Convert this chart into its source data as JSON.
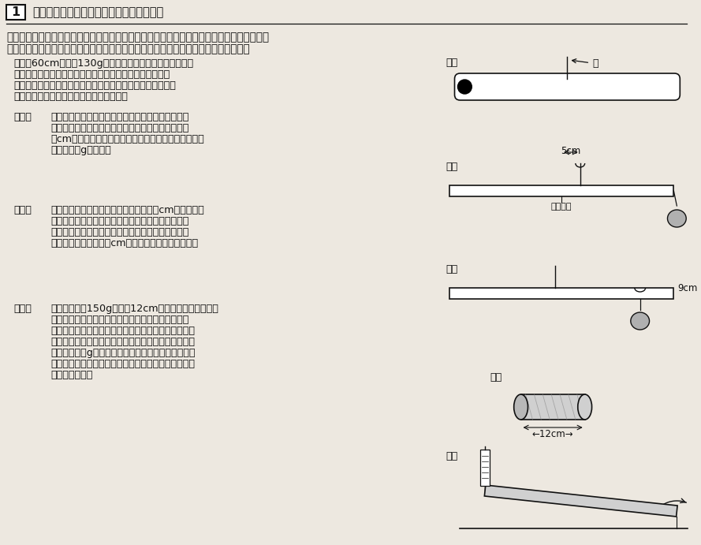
{
  "title_box": "1",
  "title_text": "次の文章を読み，下の問いに答えなさい。",
  "instruction1": "ただし，計算結果を答える際，割り算が必要な場合は，分数ではなく小数で答えなさい。ま",
  "instruction2": "た，割り切れない場合のみ，小数第２位を四捨五入して小数第１位まで答えなさい。",
  "intro_lines": [
    "　長さ60cm，重さ130gで太さがどこでも同じ筒状の棒が",
    "あります。この棒の中央の点に糸をむすびつけて上からつ",
    "るすと水平になりました（図１）。次の問いに答えなさい。",
    "なお，糸の重さは考えないものとします。"
  ],
  "q1_label": "（１）",
  "q1_lines": [
    "この棒の右端におもりをつけたところ，つりあいが",
    "とれなくなりました。そこで，糸を中央より右側に",
    "５cm動かすと棒が水平になりました（図２）。おもり",
    "の重さは何gですか。"
  ],
  "q2_label": "（２）",
  "q2_lines": [
    "（１）の水平の状態でおもりを左側に９cm動かしたと",
    "ころ，つりあいがとれなくなったので棒が水平にな",
    "るように糸の位置を動かしました。このとき，糸の",
    "位置は棒の左端から何cmのところですか（図３）。"
  ],
  "q3_label": "（３）",
  "q3_lines": [
    "棒の中に重さ150g，長さ12cmの円筒形のおもり（図",
    "４）をいれ，おもりの右端と棒の右端が合うように",
    "しました。この棒を水平面に置き，左端にばねばかり",
    "をつけて少し持ち上げました（図５）。このとき，ば",
    "ねばかりは何gを示しますか。なお，おもりは太さが",
    "どこでも同じで，筒の中にぴったりはまって動かない",
    "ものとします。"
  ],
  "fig1_label": "図１",
  "fig2_label": "図２",
  "fig3_label": "図３",
  "fig4_label": "図４",
  "fig5_label": "図５",
  "fig1_string_label": "糸",
  "fig2_annotation": "5cm",
  "fig2_sub": "棒の中心",
  "fig3_annotation": "9cm",
  "fig4_annotation": "←12cm→",
  "bg_color": "#ede8e0",
  "text_color": "#111111",
  "gray_fill": "#b0b0b0",
  "light_gray": "#d0d0d0"
}
